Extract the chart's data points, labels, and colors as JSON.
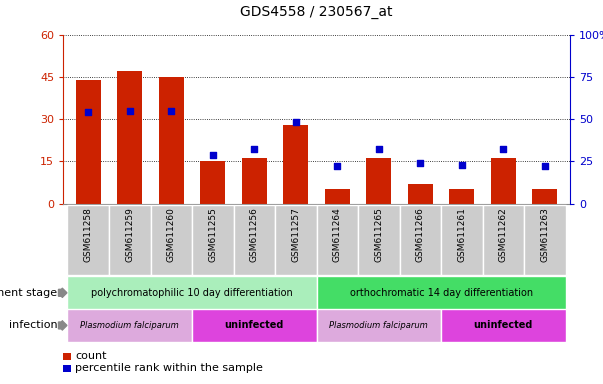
{
  "title": "GDS4558 / 230567_at",
  "samples": [
    "GSM611258",
    "GSM611259",
    "GSM611260",
    "GSM611255",
    "GSM611256",
    "GSM611257",
    "GSM611264",
    "GSM611265",
    "GSM611266",
    "GSM611261",
    "GSM611262",
    "GSM611263"
  ],
  "counts": [
    44,
    47,
    45,
    15,
    16,
    28,
    5,
    16,
    7,
    5,
    16,
    5
  ],
  "percentile_ranks": [
    54,
    55,
    55,
    29,
    32,
    48,
    22,
    32,
    24,
    23,
    32,
    22
  ],
  "left_ylim": [
    0,
    60
  ],
  "right_ylim": [
    0,
    100
  ],
  "left_yticks": [
    0,
    15,
    30,
    45,
    60
  ],
  "right_yticks": [
    0,
    25,
    50,
    75,
    100
  ],
  "right_yticklabels": [
    "0",
    "25",
    "50",
    "75",
    "100%"
  ],
  "bar_color": "#cc2200",
  "dot_color": "#0000cc",
  "dev_stage_groups": [
    {
      "label": "polychromatophilic 10 day differentiation",
      "start": 0,
      "end": 6,
      "color": "#aaeebb"
    },
    {
      "label": "orthochromatic 14 day differentiation",
      "start": 6,
      "end": 12,
      "color": "#44dd66"
    }
  ],
  "infection_groups": [
    {
      "label": "Plasmodium falciparum",
      "start": 0,
      "end": 3,
      "color": "#ddaadd"
    },
    {
      "label": "uninfected",
      "start": 3,
      "end": 6,
      "color": "#dd44dd"
    },
    {
      "label": "Plasmodium falciparum",
      "start": 6,
      "end": 9,
      "color": "#ddaadd"
    },
    {
      "label": "uninfected",
      "start": 9,
      "end": 12,
      "color": "#dd44dd"
    }
  ],
  "legend_count_label": "count",
  "legend_pct_label": "percentile rank within the sample",
  "dev_stage_label": "development stage",
  "infection_label": "infection",
  "tick_area_bg": "#cccccc",
  "plot_bg": "#ffffff",
  "fig_bg": "#ffffff"
}
